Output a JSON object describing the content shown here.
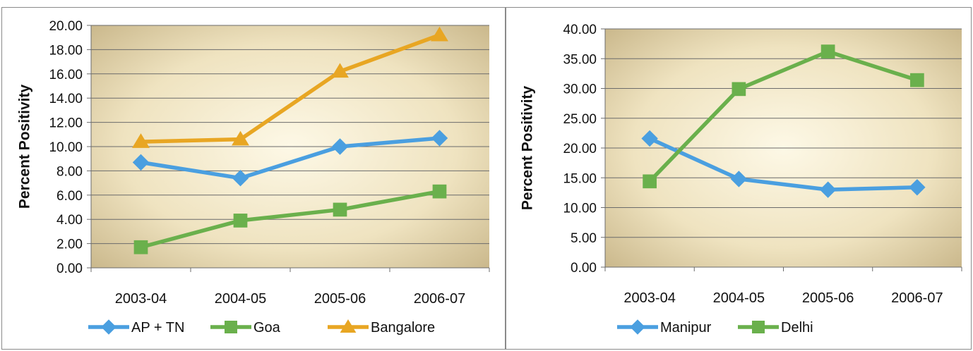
{
  "page_title": "",
  "colors": {
    "AP + TN": "#4a9fe0",
    "Goa": "#6ab04c",
    "Bangalore": "#e8a623",
    "Manipur": "#4a9fe0",
    "Delhi": "#6ab04c",
    "title": "#2e86d6"
  },
  "chart_data": [
    {
      "type": "line",
      "title": "",
      "xlabel": "",
      "ylabel": "Percent Positivity",
      "ylim": [
        0,
        20
      ],
      "ytick_step": 2,
      "ytick_labels": [
        "0.00",
        "2.00",
        "4.00",
        "6.00",
        "8.00",
        "10.00",
        "12.00",
        "14.00",
        "16.00",
        "18.00",
        "20.00"
      ],
      "categories": [
        "2003-04",
        "2004-05",
        "2005-06",
        "2006-07"
      ],
      "grid": true,
      "legend": "bottom",
      "series": [
        {
          "name": "AP + TN",
          "marker": "diamond",
          "values": [
            8.7,
            7.4,
            10.0,
            10.7
          ]
        },
        {
          "name": "Goa",
          "marker": "square",
          "values": [
            1.7,
            3.9,
            4.8,
            6.3
          ]
        },
        {
          "name": "Bangalore",
          "marker": "triangle",
          "values": [
            10.4,
            10.6,
            16.2,
            19.2
          ]
        }
      ]
    },
    {
      "type": "line",
      "title": "",
      "xlabel": "",
      "ylabel": "Percent Positivity",
      "ylim": [
        0,
        40
      ],
      "ytick_step": 5,
      "ytick_labels": [
        "0.00",
        "5.00",
        "10.00",
        "15.00",
        "20.00",
        "25.00",
        "30.00",
        "35.00",
        "40.00"
      ],
      "categories": [
        "2003-04",
        "2004-05",
        "2005-06",
        "2006-07"
      ],
      "grid": true,
      "legend": "bottom",
      "series": [
        {
          "name": "Manipur",
          "marker": "diamond",
          "values": [
            21.6,
            14.8,
            13.0,
            13.4
          ]
        },
        {
          "name": "Delhi",
          "marker": "square",
          "values": [
            14.4,
            29.9,
            36.2,
            31.4
          ]
        }
      ]
    }
  ]
}
